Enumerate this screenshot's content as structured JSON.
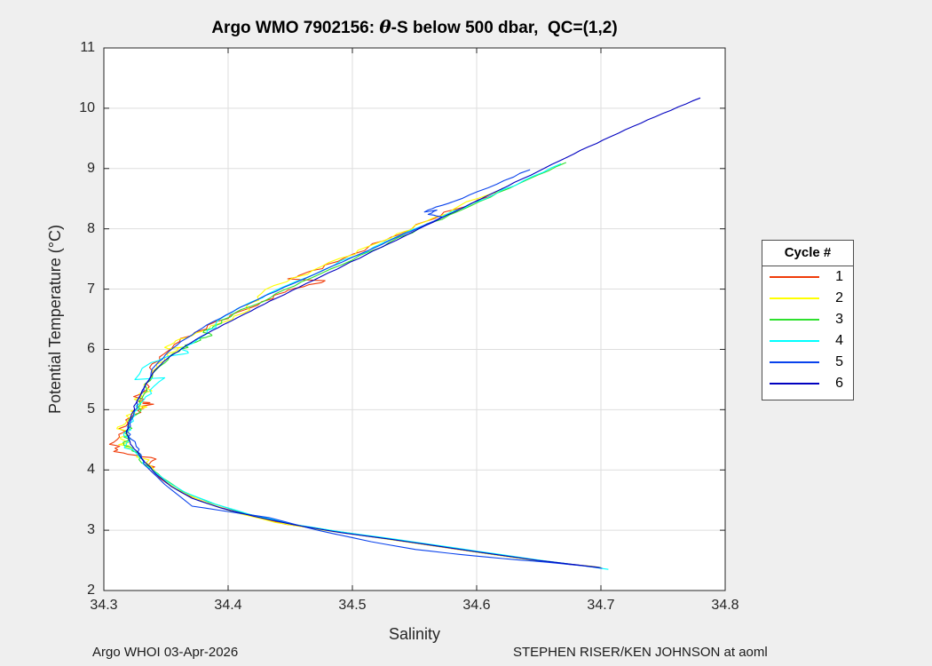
{
  "figure": {
    "title": {
      "prefix": "Argo WMO 7902156: ",
      "theta": "θ",
      "suffix": "-S below 500 dbar,  QC=(1,2)"
    },
    "footer_left": "Argo WHOI 03-Apr-2026",
    "footer_right": "STEPHEN RISER/KEN JOHNSON at aoml"
  },
  "colors": {
    "background": "#efefef",
    "plot_bg": "#ffffff",
    "axis": "#262626",
    "grid": "#dedede"
  },
  "chart_data": {
    "type": "line",
    "title": "Argo WMO 7902156: θ-S below 500 dbar,  QC=(1,2)",
    "xlabel": "Salinity",
    "ylabel": "Potential Temperature (°C)",
    "xlim": [
      34.3,
      34.8
    ],
    "ylim": [
      2,
      11
    ],
    "xticks": [
      34.3,
      34.4,
      34.5,
      34.6,
      34.7,
      34.8
    ],
    "xtick_labels": [
      "34.3",
      "34.4",
      "34.5",
      "34.6",
      "34.7",
      "34.8"
    ],
    "yticks": [
      2,
      3,
      4,
      5,
      6,
      7,
      8,
      9,
      10,
      11
    ],
    "ytick_labels": [
      "2",
      "3",
      "4",
      "5",
      "6",
      "7",
      "8",
      "9",
      "10",
      "11"
    ],
    "grid": true,
    "legend": {
      "title": "Cycle #",
      "position": "right-outside"
    },
    "series": [
      {
        "name": "1",
        "color": "#f03c0a",
        "noise": 0.0045,
        "points": [
          [
            34.617,
            8.62
          ],
          [
            34.601,
            8.48
          ],
          [
            34.584,
            8.33
          ],
          [
            34.566,
            8.17
          ],
          [
            34.549,
            8.02
          ],
          [
            34.531,
            7.86
          ],
          [
            34.513,
            7.7
          ],
          [
            34.494,
            7.52
          ],
          [
            34.476,
            7.34
          ],
          [
            34.46,
            7.25
          ],
          [
            34.448,
            7.17
          ],
          [
            34.478,
            7.14
          ],
          [
            34.461,
            7.04
          ],
          [
            34.446,
            6.95
          ],
          [
            34.427,
            6.79
          ],
          [
            34.408,
            6.62
          ],
          [
            34.39,
            6.46
          ],
          [
            34.373,
            6.28
          ],
          [
            34.361,
            6.13
          ],
          [
            34.352,
            5.98
          ],
          [
            34.345,
            5.82
          ],
          [
            34.339,
            5.64
          ],
          [
            34.334,
            5.44
          ],
          [
            34.33,
            5.26
          ],
          [
            34.328,
            5.13
          ],
          [
            34.34,
            5.09
          ],
          [
            34.327,
            4.99
          ],
          [
            34.322,
            4.88
          ],
          [
            34.318,
            4.73
          ],
          [
            34.312,
            4.59
          ],
          [
            34.308,
            4.46
          ],
          [
            34.309,
            4.36
          ],
          [
            34.316,
            4.28
          ],
          [
            34.33,
            4.22
          ],
          [
            34.342,
            4.18
          ],
          [
            34.337,
            4.11
          ],
          [
            34.336,
            4.02
          ],
          [
            34.346,
            3.85
          ],
          [
            34.362,
            3.63
          ],
          [
            34.383,
            3.45
          ],
          [
            34.41,
            3.28
          ],
          [
            34.446,
            3.1
          ],
          [
            34.486,
            2.98
          ],
          [
            34.526,
            2.86
          ],
          [
            34.566,
            2.74
          ],
          [
            34.606,
            2.62
          ],
          [
            34.645,
            2.51
          ],
          [
            34.676,
            2.43
          ],
          [
            34.697,
            2.39
          ]
        ]
      },
      {
        "name": "2",
        "color": "#ffff00",
        "noise": 0.0045,
        "points": [
          [
            34.621,
            8.68
          ],
          [
            34.602,
            8.51
          ],
          [
            34.581,
            8.32
          ],
          [
            34.559,
            8.12
          ],
          [
            34.536,
            7.92
          ],
          [
            34.513,
            7.71
          ],
          [
            34.49,
            7.51
          ],
          [
            34.468,
            7.31
          ],
          [
            34.447,
            7.12
          ],
          [
            34.427,
            6.93
          ],
          [
            34.417,
            6.76
          ],
          [
            34.412,
            6.6
          ],
          [
            34.396,
            6.45
          ],
          [
            34.374,
            6.27
          ],
          [
            34.361,
            6.17
          ],
          [
            34.354,
            6.08
          ],
          [
            34.352,
            6.01
          ],
          [
            34.367,
            6.05
          ],
          [
            34.357,
            5.96
          ],
          [
            34.349,
            5.86
          ],
          [
            34.343,
            5.7
          ],
          [
            34.338,
            5.52
          ],
          [
            34.334,
            5.36
          ],
          [
            34.331,
            5.22
          ],
          [
            34.327,
            5.08
          ],
          [
            34.332,
            5.03
          ],
          [
            34.325,
            4.95
          ],
          [
            34.318,
            4.8
          ],
          [
            34.311,
            4.71
          ],
          [
            34.32,
            4.63
          ],
          [
            34.313,
            4.54
          ],
          [
            34.318,
            4.47
          ],
          [
            34.312,
            4.42
          ],
          [
            34.321,
            4.36
          ],
          [
            34.329,
            4.26
          ],
          [
            34.334,
            4.12
          ],
          [
            34.344,
            3.91
          ],
          [
            34.358,
            3.69
          ],
          [
            34.378,
            3.49
          ],
          [
            34.403,
            3.31
          ],
          [
            34.438,
            3.13
          ],
          [
            34.477,
            3.0
          ],
          [
            34.516,
            2.89
          ],
          [
            34.556,
            2.77
          ],
          [
            34.596,
            2.65
          ],
          [
            34.636,
            2.53
          ],
          [
            34.668,
            2.45
          ],
          [
            34.693,
            2.4
          ]
        ]
      },
      {
        "name": "3",
        "color": "#2ee02e",
        "noise": 0.003,
        "points": [
          [
            34.672,
            9.1
          ],
          [
            34.649,
            8.89
          ],
          [
            34.626,
            8.67
          ],
          [
            34.602,
            8.45
          ],
          [
            34.578,
            8.23
          ],
          [
            34.554,
            8.01
          ],
          [
            34.53,
            7.78
          ],
          [
            34.506,
            7.56
          ],
          [
            34.482,
            7.33
          ],
          [
            34.459,
            7.12
          ],
          [
            34.438,
            6.92
          ],
          [
            34.419,
            6.72
          ],
          [
            34.402,
            6.54
          ],
          [
            34.388,
            6.38
          ],
          [
            34.38,
            6.28
          ],
          [
            34.387,
            6.23
          ],
          [
            34.377,
            6.18
          ],
          [
            34.371,
            6.1
          ],
          [
            34.362,
            6.0
          ],
          [
            34.353,
            5.89
          ],
          [
            34.345,
            5.72
          ],
          [
            34.339,
            5.54
          ],
          [
            34.334,
            5.37
          ],
          [
            34.331,
            5.2
          ],
          [
            34.328,
            5.04
          ],
          [
            34.324,
            4.89
          ],
          [
            34.32,
            4.73
          ],
          [
            34.317,
            4.61
          ],
          [
            34.321,
            4.51
          ],
          [
            34.316,
            4.43
          ],
          [
            34.323,
            4.36
          ],
          [
            34.33,
            4.23
          ],
          [
            34.336,
            4.06
          ],
          [
            34.347,
            3.87
          ],
          [
            34.363,
            3.65
          ],
          [
            34.385,
            3.46
          ],
          [
            34.412,
            3.29
          ],
          [
            34.448,
            3.11
          ],
          [
            34.488,
            2.98
          ],
          [
            34.528,
            2.86
          ],
          [
            34.568,
            2.74
          ],
          [
            34.608,
            2.62
          ],
          [
            34.647,
            2.51
          ],
          [
            34.678,
            2.43
          ],
          [
            34.7,
            2.38
          ]
        ]
      },
      {
        "name": "4",
        "color": "#00ffff",
        "noise": 0.003,
        "points": [
          [
            34.668,
            9.08
          ],
          [
            34.645,
            8.87
          ],
          [
            34.621,
            8.65
          ],
          [
            34.597,
            8.43
          ],
          [
            34.573,
            8.21
          ],
          [
            34.549,
            7.99
          ],
          [
            34.525,
            7.77
          ],
          [
            34.501,
            7.54
          ],
          [
            34.477,
            7.32
          ],
          [
            34.454,
            7.12
          ],
          [
            34.432,
            6.92
          ],
          [
            34.413,
            6.73
          ],
          [
            34.398,
            6.56
          ],
          [
            34.39,
            6.42
          ],
          [
            34.383,
            6.26
          ],
          [
            34.362,
            6.02
          ],
          [
            34.368,
            5.94
          ],
          [
            34.353,
            5.89
          ],
          [
            34.338,
            5.78
          ],
          [
            34.325,
            5.5
          ],
          [
            34.349,
            5.53
          ],
          [
            34.337,
            5.32
          ],
          [
            34.332,
            5.16
          ],
          [
            34.328,
            5.01
          ],
          [
            34.323,
            4.86
          ],
          [
            34.319,
            4.71
          ],
          [
            34.316,
            4.57
          ],
          [
            34.32,
            4.47
          ],
          [
            34.317,
            4.4
          ],
          [
            34.325,
            4.3
          ],
          [
            34.332,
            4.16
          ],
          [
            34.338,
            4.02
          ],
          [
            34.35,
            3.82
          ],
          [
            34.367,
            3.61
          ],
          [
            34.39,
            3.43
          ],
          [
            34.418,
            3.26
          ],
          [
            34.455,
            3.09
          ],
          [
            34.495,
            2.96
          ],
          [
            34.535,
            2.85
          ],
          [
            34.575,
            2.73
          ],
          [
            34.615,
            2.61
          ],
          [
            34.655,
            2.49
          ],
          [
            34.686,
            2.41
          ],
          [
            34.706,
            2.35
          ]
        ]
      },
      {
        "name": "5",
        "color": "#0942ec",
        "noise": 0.0013,
        "points": [
          [
            34.643,
            8.98
          ],
          [
            34.622,
            8.8
          ],
          [
            34.601,
            8.62
          ],
          [
            34.581,
            8.45
          ],
          [
            34.567,
            8.36
          ],
          [
            34.558,
            8.28
          ],
          [
            34.568,
            8.31
          ],
          [
            34.561,
            8.24
          ],
          [
            34.572,
            8.2
          ],
          [
            34.561,
            8.09
          ],
          [
            34.539,
            7.89
          ],
          [
            34.516,
            7.67
          ],
          [
            34.492,
            7.45
          ],
          [
            34.468,
            7.23
          ],
          [
            34.445,
            7.03
          ],
          [
            34.424,
            6.83
          ],
          [
            34.404,
            6.63
          ],
          [
            34.388,
            6.46
          ],
          [
            34.374,
            6.29
          ],
          [
            34.362,
            6.13
          ],
          [
            34.352,
            5.96
          ],
          [
            34.344,
            5.79
          ],
          [
            34.338,
            5.61
          ],
          [
            34.334,
            5.43
          ],
          [
            34.33,
            5.26
          ],
          [
            34.327,
            5.09
          ],
          [
            34.324,
            4.93
          ],
          [
            34.321,
            4.77
          ],
          [
            34.319,
            4.63
          ],
          [
            34.322,
            4.51
          ],
          [
            34.326,
            4.39
          ],
          [
            34.33,
            4.25
          ],
          [
            34.332,
            4.1
          ],
          [
            34.349,
            3.76
          ],
          [
            34.371,
            3.4
          ],
          [
            34.403,
            3.3
          ],
          [
            34.433,
            3.21
          ],
          [
            34.472,
            3.0
          ],
          [
            34.515,
            2.81
          ],
          [
            34.551,
            2.68
          ],
          [
            34.586,
            2.6
          ],
          [
            34.621,
            2.53
          ],
          [
            34.656,
            2.47
          ],
          [
            34.686,
            2.41
          ],
          [
            34.701,
            2.37
          ]
        ]
      },
      {
        "name": "6",
        "color": "#0000c0",
        "noise": 0.0007,
        "points": [
          [
            34.78,
            10.17
          ],
          [
            34.762,
            10.02
          ],
          [
            34.744,
            9.86
          ],
          [
            34.726,
            9.7
          ],
          [
            34.708,
            9.53
          ],
          [
            34.69,
            9.36
          ],
          [
            34.672,
            9.18
          ],
          [
            34.655,
            9.01
          ],
          [
            34.637,
            8.83
          ],
          [
            34.619,
            8.65
          ],
          [
            34.601,
            8.47
          ],
          [
            34.583,
            8.29
          ],
          [
            34.565,
            8.11
          ],
          [
            34.547,
            7.93
          ],
          [
            34.529,
            7.75
          ],
          [
            34.511,
            7.57
          ],
          [
            34.493,
            7.39
          ],
          [
            34.475,
            7.21
          ],
          [
            34.457,
            7.03
          ],
          [
            34.44,
            6.86
          ],
          [
            34.423,
            6.69
          ],
          [
            34.407,
            6.52
          ],
          [
            34.392,
            6.36
          ],
          [
            34.378,
            6.21
          ],
          [
            34.366,
            6.06
          ],
          [
            34.355,
            5.91
          ],
          [
            34.346,
            5.75
          ],
          [
            34.339,
            5.59
          ],
          [
            34.334,
            5.43
          ],
          [
            34.33,
            5.27
          ],
          [
            34.326,
            5.11
          ],
          [
            34.323,
            4.95
          ],
          [
            34.32,
            4.79
          ],
          [
            34.318,
            4.64
          ],
          [
            34.32,
            4.51
          ],
          [
            34.323,
            4.39
          ],
          [
            34.328,
            4.26
          ],
          [
            34.334,
            4.11
          ],
          [
            34.342,
            3.93
          ],
          [
            34.354,
            3.73
          ],
          [
            34.371,
            3.53
          ],
          [
            34.394,
            3.37
          ],
          [
            34.421,
            3.23
          ],
          [
            34.453,
            3.09
          ],
          [
            34.491,
            2.96
          ],
          [
            34.531,
            2.85
          ],
          [
            34.571,
            2.73
          ],
          [
            34.611,
            2.61
          ],
          [
            34.649,
            2.5
          ],
          [
            34.679,
            2.43
          ],
          [
            34.699,
            2.38
          ]
        ]
      }
    ]
  }
}
